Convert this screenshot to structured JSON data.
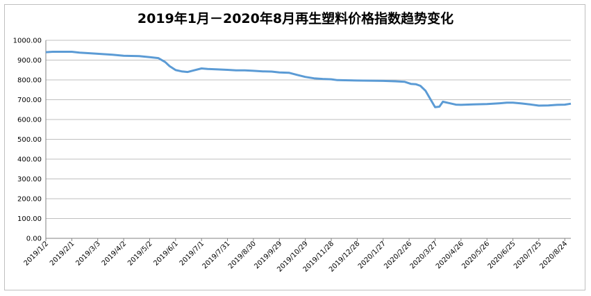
{
  "chart_data": {
    "type": "line",
    "title": "2019年1月－2020年8月再生塑料价格指数趋势变化",
    "xlabel": "",
    "ylabel": "",
    "ylim": [
      0,
      1000
    ],
    "yticks": [
      "0.00",
      "100.00",
      "200.00",
      "300.00",
      "400.00",
      "500.00",
      "600.00",
      "700.00",
      "800.00",
      "900.00",
      "1000.00"
    ],
    "grid": true,
    "legend": "none",
    "colors": {
      "line": "#5b9bd5",
      "grid": "#bfbfbf",
      "axis": "#808080"
    },
    "x_tick_labels": [
      "2019/1/2",
      "2019/2/1",
      "2019/3/3",
      "2019/4/2",
      "2019/5/2",
      "2019/6/1",
      "2019/7/1",
      "2019/7/31",
      "2019/8/30",
      "2019/9/29",
      "2019/10/29",
      "2019/11/28",
      "2019/12/28",
      "2020/1/27",
      "2020/2/26",
      "2020/3/27",
      "2020/4/26",
      "2020/5/26",
      "2020/6/25",
      "2020/7/25",
      "2020/8/24"
    ],
    "series": [
      {
        "x": [
          "2019/1/2",
          "2019/1/10",
          "2019/2/1",
          "2019/2/10",
          "2019/2/20",
          "2019/3/3",
          "2019/3/20",
          "2019/4/2",
          "2019/4/20",
          "2019/5/2",
          "2019/5/12",
          "2019/5/20",
          "2019/5/25",
          "2019/6/1",
          "2019/6/8",
          "2019/6/15",
          "2019/6/22",
          "2019/7/1",
          "2019/7/8",
          "2019/7/20",
          "2019/7/31",
          "2019/8/10",
          "2019/8/20",
          "2019/8/30",
          "2019/9/10",
          "2019/9/20",
          "2019/9/29",
          "2019/10/10",
          "2019/10/20",
          "2019/10/29",
          "2019/11/8",
          "2019/11/18",
          "2019/11/28",
          "2019/12/5",
          "2019/12/28",
          "2020/1/27",
          "2020/2/10",
          "2020/2/21",
          "2020/2/28",
          "2020/3/5",
          "2020/3/10",
          "2020/3/16",
          "2020/3/22",
          "2020/3/27",
          "2020/4/1",
          "2020/4/5",
          "2020/4/12",
          "2020/4/20",
          "2020/4/26",
          "2020/5/10",
          "2020/5/26",
          "2020/6/10",
          "2020/6/18",
          "2020/6/25",
          "2020/7/5",
          "2020/7/15",
          "2020/7/25",
          "2020/8/5",
          "2020/8/15",
          "2020/8/24",
          "2020/8/31"
        ],
        "values": [
          940,
          942,
          942,
          938,
          935,
          932,
          927,
          922,
          920,
          915,
          910,
          890,
          870,
          850,
          843,
          840,
          848,
          858,
          855,
          853,
          851,
          848,
          848,
          846,
          843,
          842,
          838,
          836,
          825,
          815,
          808,
          805,
          803,
          799,
          797,
          795,
          793,
          790,
          780,
          778,
          770,
          745,
          700,
          662,
          665,
          690,
          683,
          675,
          674,
          676,
          678,
          682,
          685,
          685,
          681,
          676,
          670,
          671,
          674,
          675,
          680
        ]
      }
    ]
  }
}
